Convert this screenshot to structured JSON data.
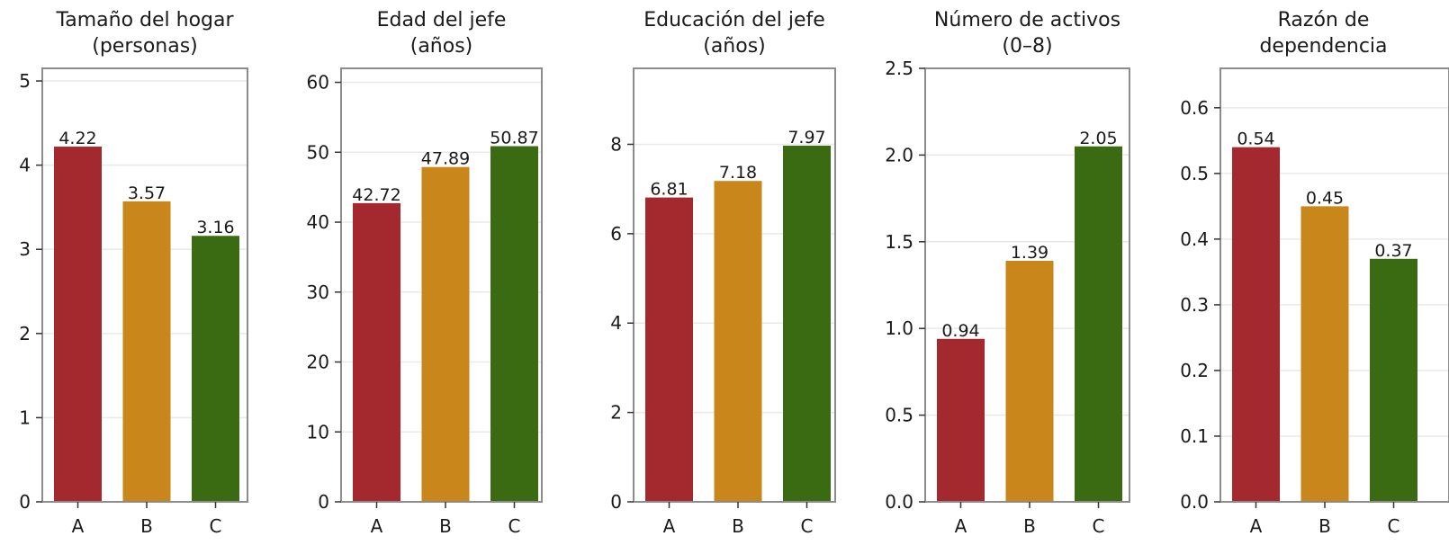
{
  "chart_data": [
    {
      "type": "bar",
      "title": [
        "Tamaño del hogar",
        "(personas)"
      ],
      "categories": [
        "A",
        "B",
        "C"
      ],
      "values": [
        4.22,
        3.57,
        3.16
      ],
      "value_labels": [
        "4.22",
        "3.57",
        "3.16"
      ],
      "ylim": [
        0,
        5.15
      ],
      "yticks": [
        0,
        1,
        2,
        3,
        4,
        5
      ],
      "ytick_labels": [
        "0",
        "1",
        "2",
        "3",
        "4",
        "5"
      ],
      "colors": [
        "#a4292e",
        "#c8861b",
        "#3a6b12"
      ],
      "grid": true
    },
    {
      "type": "bar",
      "title": [
        "Edad del jefe",
        "(años)"
      ],
      "categories": [
        "A",
        "B",
        "C"
      ],
      "values": [
        42.72,
        47.89,
        50.87
      ],
      "value_labels": [
        "42.72",
        "47.89",
        "50.87"
      ],
      "ylim": [
        0,
        62
      ],
      "yticks": [
        0,
        10,
        20,
        30,
        40,
        50,
        60
      ],
      "ytick_labels": [
        "0",
        "10",
        "20",
        "30",
        "40",
        "50",
        "60"
      ],
      "colors": [
        "#a4292e",
        "#c8861b",
        "#3a6b12"
      ],
      "grid": true
    },
    {
      "type": "bar",
      "title": [
        "Educación del jefe",
        "(años)"
      ],
      "categories": [
        "A",
        "B",
        "C"
      ],
      "values": [
        6.81,
        7.18,
        7.97
      ],
      "value_labels": [
        "6.81",
        "7.18",
        "7.97"
      ],
      "ylim": [
        0,
        9.7
      ],
      "yticks": [
        0,
        2,
        4,
        6,
        8
      ],
      "ytick_labels": [
        "0",
        "2",
        "4",
        "6",
        "8"
      ],
      "colors": [
        "#a4292e",
        "#c8861b",
        "#3a6b12"
      ],
      "grid": true
    },
    {
      "type": "bar",
      "title": [
        "Número de activos",
        "(0–8)"
      ],
      "categories": [
        "A",
        "B",
        "C"
      ],
      "values": [
        0.94,
        1.39,
        2.05
      ],
      "value_labels": [
        "0.94",
        "1.39",
        "2.05"
      ],
      "ylim": [
        0,
        2.5
      ],
      "yticks": [
        0,
        0.5,
        1.0,
        1.5,
        2.0,
        2.5
      ],
      "ytick_labels": [
        "0.0",
        "0.5",
        "1.0",
        "1.5",
        "2.0",
        "2.5"
      ],
      "colors": [
        "#a4292e",
        "#c8861b",
        "#3a6b12"
      ],
      "grid": true
    },
    {
      "type": "bar",
      "title": [
        "Razón de",
        "dependencia"
      ],
      "categories": [
        "A",
        "B",
        "C"
      ],
      "values": [
        0.54,
        0.45,
        0.37
      ],
      "value_labels": [
        "0.54",
        "0.45",
        "0.37"
      ],
      "ylim": [
        0,
        0.66
      ],
      "yticks": [
        0,
        0.1,
        0.2,
        0.3,
        0.4,
        0.5,
        0.6
      ],
      "ytick_labels": [
        "0.0",
        "0.1",
        "0.2",
        "0.3",
        "0.4",
        "0.5",
        "0.6"
      ],
      "colors": [
        "#a4292e",
        "#c8861b",
        "#3a6b12"
      ],
      "grid": true
    }
  ]
}
